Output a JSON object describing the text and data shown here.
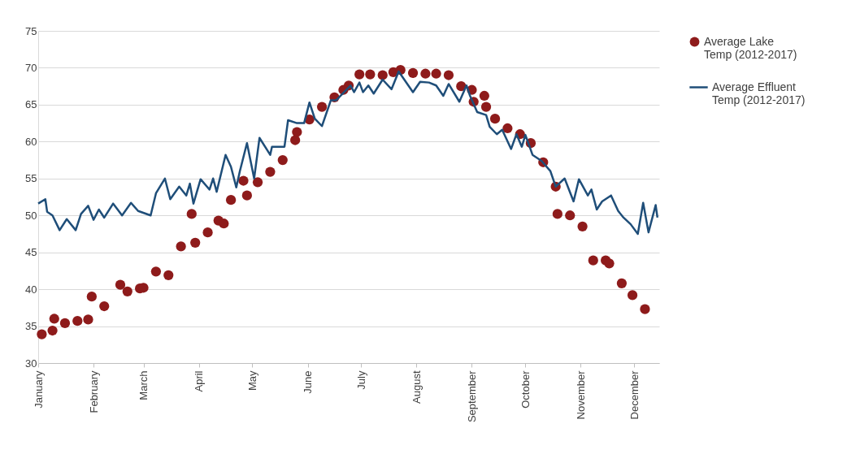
{
  "chart_data": {
    "type": "line",
    "xlim": [
      "--01-01",
      "--12-15"
    ],
    "xticks": [
      {
        "value": "--01-01",
        "label": "January"
      },
      {
        "value": "--02-01",
        "label": "February"
      },
      {
        "value": "--03-01",
        "label": "March"
      },
      {
        "value": "--04-01",
        "label": "April"
      },
      {
        "value": "--05-01",
        "label": "May"
      },
      {
        "value": "--06-01",
        "label": "June"
      },
      {
        "value": "--07-01",
        "label": "July"
      },
      {
        "value": "--08-01",
        "label": "August"
      },
      {
        "value": "--09-01",
        "label": "September"
      },
      {
        "value": "--10-01",
        "label": "October"
      },
      {
        "value": "--11-01",
        "label": "November"
      },
      {
        "value": "--12-01",
        "label": "December"
      }
    ],
    "ylim": [
      30,
      75
    ],
    "yticks": [
      30,
      35,
      40,
      45,
      50,
      55,
      60,
      65,
      70,
      75
    ],
    "grid": "y",
    "legend": "right",
    "series": [
      {
        "name": "Average Lake Temp (2012-2017)",
        "type": "scatter",
        "marker": "circle",
        "color": "#8e1b1b",
        "x": [
          "--01-03",
          "--01-09",
          "--01-10",
          "--01-16",
          "--01-23",
          "--01-29",
          "--01-31",
          "--02-07",
          "--02-16",
          "--02-20",
          "--02-27",
          "--03-01",
          "--03-08",
          "--03-15",
          "--03-22",
          "--03-28",
          "--03-30",
          "--04-06",
          "--04-12",
          "--04-15",
          "--04-19",
          "--04-26",
          "--04-28",
          "--05-04",
          "--05-11",
          "--05-18",
          "--05-25",
          "--05-26",
          "--06-02",
          "--06-09",
          "--06-16",
          "--06-21",
          "--06-24",
          "--06-30",
          "--07-06",
          "--07-13",
          "--07-19",
          "--07-23",
          "--07-30",
          "--08-06",
          "--08-12",
          "--08-19",
          "--08-26",
          "--09-01",
          "--09-02",
          "--09-08",
          "--09-09",
          "--09-14",
          "--09-21",
          "--09-28",
          "--10-04",
          "--10-11",
          "--10-18",
          "--10-19",
          "--10-26",
          "--11-02",
          "--11-08",
          "--11-15",
          "--11-17",
          "--11-24",
          "--11-30",
          "--12-07"
        ],
        "values": [
          33.9,
          34.4,
          36.0,
          35.4,
          35.7,
          35.9,
          39.0,
          37.7,
          40.6,
          39.7,
          40.1,
          40.2,
          42.4,
          41.9,
          45.8,
          50.2,
          46.3,
          47.7,
          49.3,
          48.9,
          52.1,
          54.7,
          52.7,
          54.5,
          55.9,
          57.5,
          60.2,
          61.3,
          63.0,
          64.7,
          66.0,
          67.0,
          67.6,
          69.1,
          69.1,
          69.0,
          69.4,
          69.7,
          69.3,
          69.2,
          69.2,
          69.0,
          67.5,
          67.0,
          65.4,
          66.2,
          64.7,
          63.1,
          61.8,
          61.0,
          59.8,
          57.2,
          53.9,
          50.2,
          50.0,
          48.5,
          43.9,
          43.9,
          43.5,
          40.8,
          39.2,
          37.3
        ]
      },
      {
        "name": "Average Effluent Temp (2012-2017)",
        "color": "#1f4e79",
        "x": [
          "--01-01",
          "--01-05",
          "--01-06",
          "--01-09",
          "--01-13",
          "--01-17",
          "--01-22",
          "--01-25",
          "--01-29",
          "--02-01",
          "--02-04",
          "--02-07",
          "--02-12",
          "--02-17",
          "--02-22",
          "--02-26",
          "--03-05",
          "--03-08",
          "--03-13",
          "--03-16",
          "--03-21",
          "--03-25",
          "--03-27",
          "--03-29",
          "--04-02",
          "--04-07",
          "--04-09",
          "--04-11",
          "--04-16",
          "--04-19",
          "--04-22",
          "--04-24",
          "--04-28",
          "--05-02",
          "--05-05",
          "--05-11",
          "--05-12",
          "--05-19",
          "--05-21",
          "--05-26",
          "--05-30",
          "--06-02",
          "--06-05",
          "--06-09",
          "--06-14",
          "--06-17",
          "--06-25",
          "--06-27",
          "--06-30",
          "--07-02",
          "--07-05",
          "--07-08",
          "--07-13",
          "--07-18",
          "--07-22",
          "--07-30",
          "--08-03",
          "--08-08",
          "--08-12",
          "--08-16",
          "--08-19",
          "--08-25",
          "--08-29",
          "--08-31",
          "--09-04",
          "--09-09",
          "--09-11",
          "--09-15",
          "--09-18",
          "--09-23",
          "--09-26",
          "--09-29",
          "--10-01",
          "--10-05",
          "--10-10",
          "--10-15",
          "--10-18",
          "--10-23",
          "--10-28",
          "--10-31",
          "--11-05",
          "--11-07",
          "--11-10",
          "--11-13",
          "--11-18",
          "--11-22",
          "--11-25",
          "--11-29",
          "--12-03",
          "--12-06",
          "--12-09",
          "--12-13",
          "--12-14"
        ],
        "values": [
          51.6,
          52.2,
          50.5,
          50.0,
          48.0,
          49.5,
          48.0,
          50.2,
          51.3,
          49.4,
          50.8,
          49.7,
          51.6,
          50.0,
          51.7,
          50.6,
          50.0,
          53.0,
          55.0,
          52.2,
          53.9,
          52.7,
          54.3,
          51.6,
          54.9,
          53.5,
          55.0,
          53.2,
          58.2,
          56.6,
          53.8,
          56.0,
          59.8,
          55.0,
          60.5,
          58.2,
          59.3,
          59.3,
          62.9,
          62.5,
          62.5,
          65.3,
          63.1,
          62.1,
          65.6,
          65.6,
          67.6,
          66.7,
          68.0,
          66.7,
          67.6,
          66.5,
          68.4,
          67.1,
          69.5,
          66.7,
          68.1,
          68.0,
          67.6,
          66.2,
          67.8,
          65.4,
          67.6,
          66.2,
          64.0,
          63.6,
          62.0,
          61.0,
          61.6,
          59.0,
          61.0,
          59.3,
          60.9,
          58.2,
          57.4,
          56.0,
          53.9,
          55.0,
          51.9,
          54.9,
          52.7,
          53.5,
          50.8,
          51.9,
          52.7,
          50.6,
          49.7,
          48.8,
          47.5,
          51.7,
          47.7,
          51.4,
          49.7
        ]
      }
    ]
  }
}
